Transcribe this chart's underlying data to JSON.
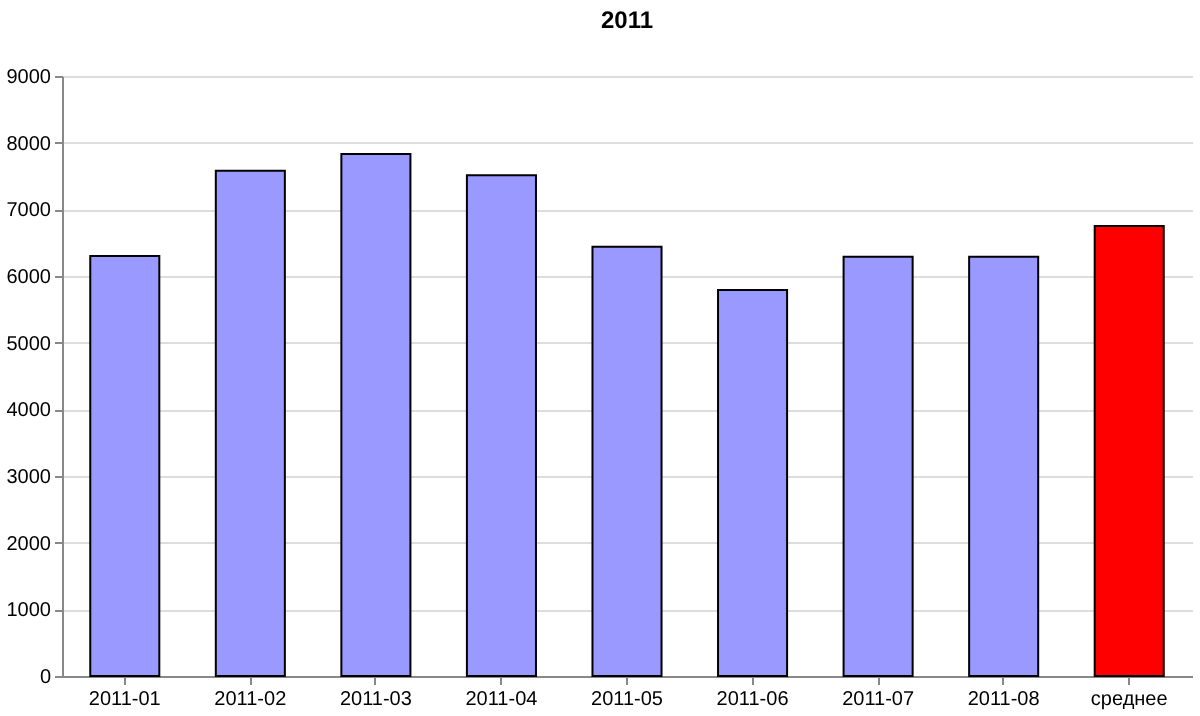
{
  "chart_data": {
    "type": "bar",
    "title": "2011",
    "categories": [
      "2011-01",
      "2011-02",
      "2011-03",
      "2011-04",
      "2011-05",
      "2011-06",
      "2011-07",
      "2011-08",
      "среднее"
    ],
    "values": [
      6300,
      7580,
      7830,
      7510,
      6440,
      5790,
      6290,
      6290,
      6750
    ],
    "colors": [
      "#9999ff",
      "#9999ff",
      "#9999ff",
      "#9999ff",
      "#9999ff",
      "#9999ff",
      "#9999ff",
      "#9999ff",
      "#ff0000"
    ],
    "ylim": [
      0,
      9000
    ],
    "yticks": [
      0,
      1000,
      2000,
      3000,
      4000,
      5000,
      6000,
      7000,
      8000,
      9000
    ],
    "grid": "y"
  }
}
